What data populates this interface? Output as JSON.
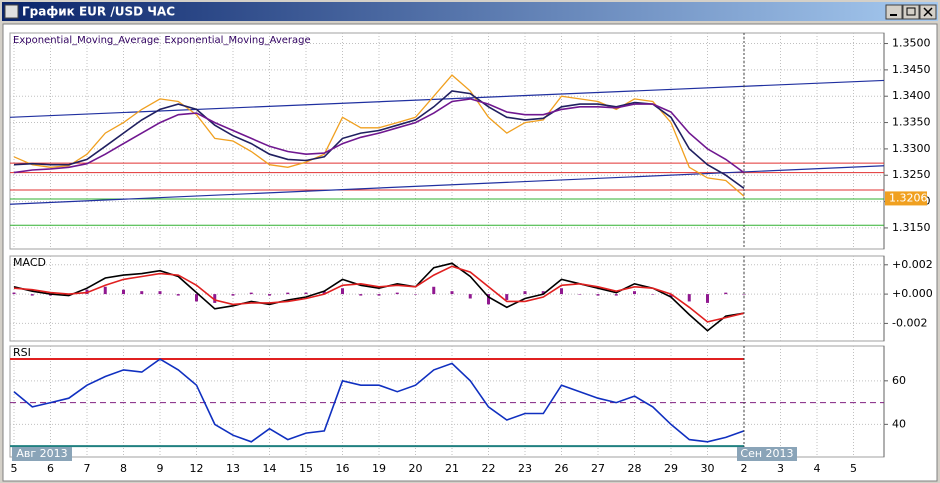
{
  "window": {
    "title": "График EUR /USD ЧАС"
  },
  "chart_data": [
    {
      "type": "line",
      "categories": [
        "5",
        null,
        "6",
        null,
        "7",
        null,
        "8",
        null,
        "9",
        null,
        "12",
        null,
        "13",
        null,
        "14",
        null,
        "15",
        null,
        "16",
        null,
        "19",
        null,
        "20",
        null,
        "21",
        null,
        "22",
        null,
        "23",
        null,
        "26",
        null,
        "27",
        null,
        "28",
        null,
        "29",
        null,
        "30",
        null,
        "2",
        null,
        "3",
        null,
        "4",
        null,
        "5",
        null
      ],
      "month_labels": [
        "Авг 2013",
        "Сен 2013"
      ],
      "ylim": [
        1.311,
        1.352
      ],
      "yticks": [
        {
          "value": 1.315,
          "label": "1.3150"
        },
        {
          "value": 1.32,
          "label": "1.3200"
        },
        {
          "value": 1.325,
          "label": "1.3250"
        },
        {
          "value": 1.33,
          "label": "1.3300"
        },
        {
          "value": 1.335,
          "label": "1.3350"
        },
        {
          "value": 1.34,
          "label": "1.3400"
        },
        {
          "value": 1.345,
          "label": "1.3450"
        },
        {
          "value": 1.35,
          "label": "1.3500"
        }
      ],
      "grid": true,
      "series": [
        {
          "color": "#f0a020",
          "values": [
            1.3285,
            1.327,
            1.3265,
            1.3268,
            1.329,
            1.333,
            1.335,
            1.3375,
            1.3395,
            1.339,
            1.3365,
            1.332,
            1.3315,
            1.3295,
            1.327,
            1.3265,
            1.3275,
            1.329,
            1.336,
            1.334,
            1.334,
            1.335,
            1.336,
            1.34,
            1.344,
            1.341,
            1.336,
            1.333,
            1.335,
            1.3355,
            1.34,
            1.3395,
            1.339,
            1.3375,
            1.3395,
            1.339,
            1.335,
            1.3265,
            1.3245,
            1.324,
            1.321,
            null,
            null,
            null,
            null,
            null,
            null,
            null
          ]
        },
        {
          "name": "Exponential_Moving_Average",
          "color": "#202060",
          "values": [
            1.327,
            1.3272,
            1.327,
            1.327,
            1.328,
            1.3305,
            1.333,
            1.3355,
            1.3375,
            1.3385,
            1.3375,
            1.3345,
            1.3325,
            1.331,
            1.329,
            1.328,
            1.3278,
            1.3285,
            1.332,
            1.333,
            1.3335,
            1.3345,
            1.3355,
            1.338,
            1.341,
            1.3405,
            1.338,
            1.336,
            1.3355,
            1.3358,
            1.338,
            1.3385,
            1.3385,
            1.338,
            1.3388,
            1.3385,
            1.336,
            1.33,
            1.327,
            1.325,
            1.3225,
            null,
            null,
            null,
            null,
            null,
            null,
            null
          ]
        },
        {
          "name": "Exponential_Moving_Average",
          "color": "#701890",
          "values": [
            1.3255,
            1.326,
            1.3262,
            1.3265,
            1.3272,
            1.329,
            1.331,
            1.333,
            1.335,
            1.3365,
            1.3368,
            1.335,
            1.3335,
            1.332,
            1.3305,
            1.3295,
            1.329,
            1.3292,
            1.331,
            1.3322,
            1.333,
            1.334,
            1.335,
            1.3368,
            1.339,
            1.3395,
            1.3385,
            1.337,
            1.3365,
            1.3365,
            1.3375,
            1.338,
            1.338,
            1.3378,
            1.3385,
            1.3385,
            1.337,
            1.333,
            1.33,
            1.328,
            1.3255,
            null,
            null,
            null,
            null,
            null,
            null,
            null
          ]
        }
      ],
      "hlines": [
        {
          "value": 1.3273,
          "color": "#e03030"
        },
        {
          "value": 1.3255,
          "color": "#e03030"
        },
        {
          "value": 1.3222,
          "color": "#e03030"
        },
        {
          "value": 1.3205,
          "color": "#30b030"
        },
        {
          "value": 1.3155,
          "color": "#30b030"
        }
      ],
      "trendlines": [
        {
          "values": [
            1.336,
            1.343
          ],
          "color": "#2030a0"
        },
        {
          "values": [
            1.3195,
            1.3268
          ],
          "color": "#2030a0"
        }
      ],
      "price_label": {
        "value": 1.3206,
        "label": "1.3206",
        "color": "#f0a020"
      }
    },
    {
      "type": "line",
      "title": "MACD",
      "ylim": [
        -0.0032,
        0.0026
      ],
      "yticks": [
        {
          "value": -0.002,
          "label": "-0.002"
        },
        {
          "value": 0,
          "label": "+0.000"
        },
        {
          "value": 0.002,
          "label": "+0.002"
        }
      ],
      "grid": true,
      "series": [
        {
          "color": "#901890",
          "style": "bar",
          "values": [
            0.0001,
            -0.0001,
            -0.0001,
            -0.0001,
            0.0003,
            0.0005,
            0.0003,
            0.0002,
            0.0002,
            -0.0001,
            -0.0005,
            -0.0006,
            -0.0001,
            0.0001,
            -0.0001,
            0.0001,
            0.0001,
            0.0002,
            0.0004,
            -0.0001,
            -0.0001,
            0.0001,
            0,
            0.0005,
            0.0002,
            -0.0003,
            -0.0007,
            -0.0004,
            0.0002,
            0.0002,
            0.0004,
            0,
            -0.0001,
            -0.0001,
            0.0002,
            0,
            -0.0002,
            -0.0005,
            -0.0006,
            0.0001,
            0,
            null,
            null,
            null,
            null,
            null,
            null,
            null
          ]
        },
        {
          "color": "#000000",
          "values": [
            0.0005,
            0.0002,
            0,
            -0.0001,
            0.0004,
            0.0011,
            0.0013,
            0.0014,
            0.0016,
            0.0012,
            0.0001,
            -0.001,
            -0.0008,
            -0.0005,
            -0.0007,
            -0.0004,
            -0.0002,
            0.0002,
            0.001,
            0.0006,
            0.0004,
            0.0007,
            0.0005,
            0.0018,
            0.0021,
            0.0012,
            -0.0002,
            -0.0009,
            -0.0003,
            0,
            0.001,
            0.0007,
            0.0004,
            0.0001,
            0.0007,
            0.0004,
            -0.0002,
            -0.0014,
            -0.0025,
            -0.0015,
            -0.0013,
            null,
            null,
            null,
            null,
            null,
            null,
            null
          ]
        },
        {
          "color": "#e02020",
          "values": [
            0.0004,
            0.0003,
            0.0001,
            0,
            0.0001,
            0.0006,
            0.001,
            0.0012,
            0.0014,
            0.0013,
            0.0006,
            -0.0004,
            -0.0007,
            -0.0006,
            -0.0006,
            -0.0005,
            -0.0003,
            0,
            0.0006,
            0.0007,
            0.0005,
            0.0006,
            0.0005,
            0.0013,
            0.0019,
            0.0015,
            0.0005,
            -0.0005,
            -0.0005,
            -0.0002,
            0.0006,
            0.0007,
            0.0005,
            0.0002,
            0.0005,
            0.0004,
            0,
            -0.0009,
            -0.0019,
            -0.0016,
            -0.0013,
            null,
            null,
            null,
            null,
            null,
            null,
            null
          ]
        }
      ]
    },
    {
      "type": "line",
      "title": "RSI",
      "ylim": [
        25,
        76
      ],
      "yticks": [
        40,
        60
      ],
      "grid": true,
      "series": [
        {
          "color": "#1030c0",
          "values": [
            55,
            48,
            50,
            52,
            58,
            62,
            65,
            64,
            70,
            65,
            58,
            40,
            35,
            32,
            38,
            33,
            36,
            37,
            60,
            58,
            58,
            55,
            58,
            65,
            68,
            60,
            48,
            42,
            45,
            45,
            58,
            55,
            52,
            50,
            53,
            48,
            40,
            33,
            32,
            34,
            37,
            null,
            null,
            null,
            null,
            null,
            null,
            null
          ]
        }
      ],
      "hlines": [
        {
          "value": 70,
          "color": "#e02020"
        },
        {
          "value": 50,
          "color": "#802080",
          "style": "dashed"
        },
        {
          "value": 30,
          "color": "#208080"
        }
      ]
    }
  ]
}
